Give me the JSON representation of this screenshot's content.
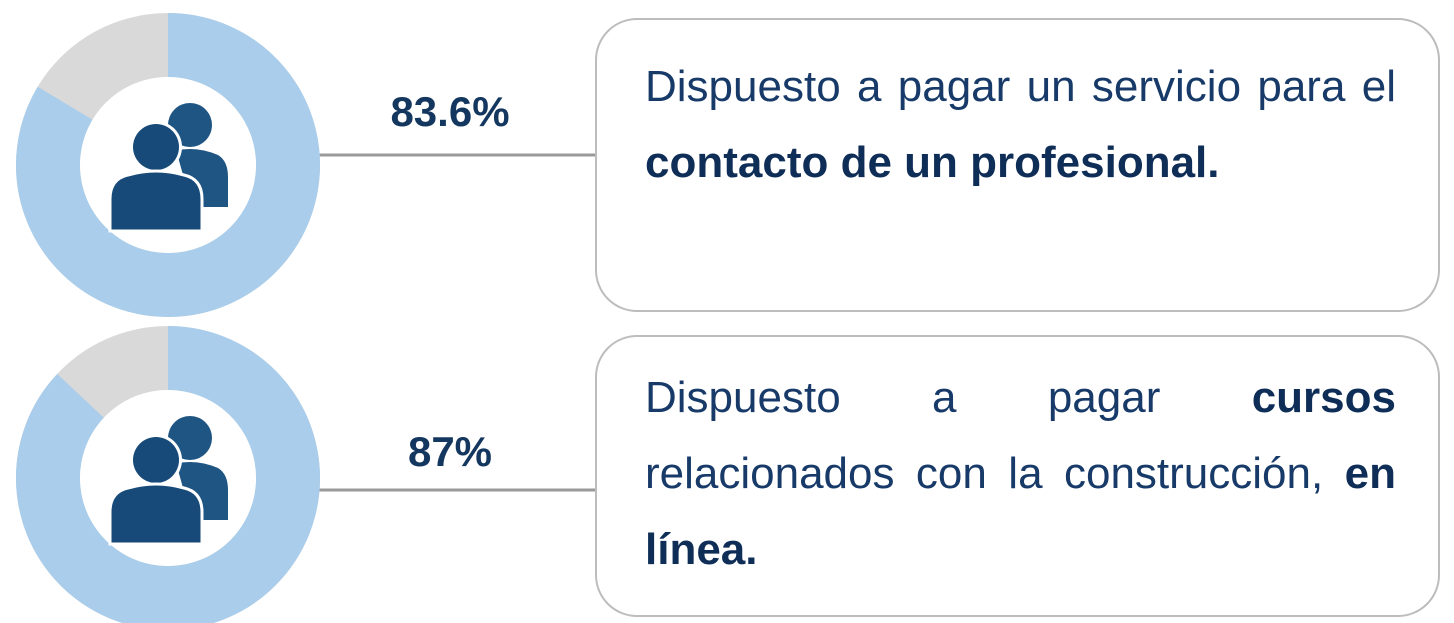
{
  "items": [
    {
      "value": 83.6,
      "label": "83.6%",
      "text": [
        {
          "text": "Dispuesto a pagar un servicio para el ",
          "bold": false
        },
        {
          "text": "contacto de un profesional.",
          "bold": true
        }
      ]
    },
    {
      "value": 87,
      "label": "87%",
      "text": [
        {
          "text": "Dispuesto a pagar ",
          "bold": false
        },
        {
          "text": "cursos",
          "bold": true
        },
        {
          "text": " relacionados con la construcción, ",
          "bold": false
        },
        {
          "text": "en línea.",
          "bold": true
        }
      ]
    }
  ]
}
